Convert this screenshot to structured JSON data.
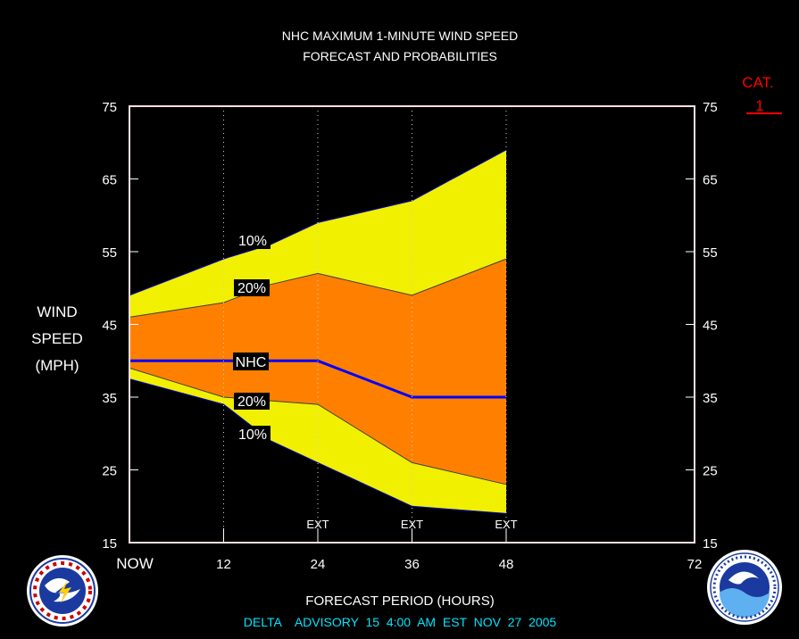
{
  "title_line1": "NHC MAXIMUM 1-MINUTE WIND SPEED",
  "title_line2": "FORECAST AND PROBABILITIES",
  "cat": {
    "label": "CAT.",
    "value": "1"
  },
  "ylabel": [
    "WIND",
    "SPEED",
    "(MPH)"
  ],
  "xlabel": "FORECAST PERIOD (HOURS)",
  "advisory": "DELTA    ADVISORY  15  4:00  AM  EST  NOV  27  2005",
  "colors": {
    "outer_band": "#f0f000",
    "inner_band": "#ff8000",
    "nhc_line": "#0000ff",
    "frame": "#ffe0e0",
    "cat": "#ff0000",
    "advisory": "#00e5ff"
  },
  "band_labels": {
    "p10_upper": "10%",
    "p20_upper": "20%",
    "nhc": "NHC",
    "p20_lower": "20%",
    "p10_lower": "10%"
  },
  "chart_data": {
    "type": "area",
    "x_ticks": [
      0,
      12,
      24,
      36,
      48,
      72
    ],
    "x_tick_labels": [
      "NOW",
      "12",
      "24",
      "36",
      "48",
      "72"
    ],
    "ext_label": "EXT",
    "ext_at": [
      24,
      36,
      48
    ],
    "xlim": [
      0,
      72
    ],
    "y_ticks": [
      75,
      65,
      55,
      45,
      35,
      25,
      15
    ],
    "ylim": [
      15,
      75
    ],
    "nhc": {
      "x": [
        0,
        12,
        24,
        36,
        48
      ],
      "y": [
        40,
        40,
        40,
        35,
        35
      ]
    },
    "band_10_upper": {
      "x": [
        0,
        6,
        12,
        18,
        24,
        36,
        48
      ],
      "y": [
        49,
        51.5,
        54,
        56,
        59,
        62,
        69
      ]
    },
    "band_20_upper": {
      "x": [
        0,
        12,
        18,
        24,
        36,
        48
      ],
      "y": [
        46,
        48,
        50.5,
        52,
        49,
        54
      ]
    },
    "band_20_lower": {
      "x": [
        0,
        6,
        12,
        18,
        24,
        36,
        48
      ],
      "y": [
        39,
        37,
        35,
        34.5,
        34,
        26,
        23
      ]
    },
    "band_10_lower": {
      "x": [
        0,
        12,
        18,
        24,
        36,
        48
      ],
      "y": [
        37.5,
        34,
        29,
        26,
        20,
        19
      ]
    }
  }
}
